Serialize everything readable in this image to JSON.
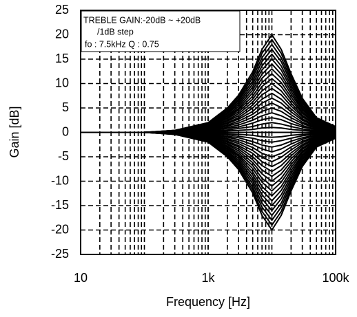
{
  "chart_data": {
    "type": "line",
    "xlabel": "Frequency [Hz]",
    "ylabel": "Gain [dB]",
    "annotations": [
      "TREBLE GAIN:-20dB  ~  +20dB",
      "/1dB step",
      "fo : 7.5kHz    Q : 0.75"
    ],
    "xscale": "log",
    "grid": true,
    "color": "#000000",
    "xlim": [
      10,
      100000
    ],
    "xticks": [
      10,
      {
        "value": 1000,
        "label": "1k"
      },
      {
        "value": 100000,
        "label": "100k"
      }
    ],
    "ylim": [
      -25,
      25
    ],
    "yticks": [
      -25,
      -20,
      -15,
      -10,
      -5,
      0,
      5,
      10,
      15,
      20,
      25
    ],
    "x": [
      10,
      100,
      300,
      1000,
      2000,
      3000,
      5000,
      7000,
      10000,
      14000,
      20000,
      30000,
      50000,
      100000
    ],
    "series": [
      {
        "values": [
          0,
          0,
          0.4,
          2,
          5,
          7.6,
          12.4,
          17,
          20,
          17,
          12,
          7,
          3,
          1.2
        ]
      },
      {
        "values": [
          0,
          0,
          0.4,
          1.9,
          4.8,
          7.2,
          11.8,
          16.2,
          19,
          16.2,
          11.4,
          6.7,
          2.9,
          1.1
        ]
      },
      {
        "values": [
          0,
          0,
          0.4,
          1.8,
          4.5,
          6.8,
          11.2,
          15.3,
          18,
          15.3,
          10.8,
          6.3,
          2.7,
          1.1
        ]
      },
      {
        "values": [
          0,
          0,
          0.3,
          1.7,
          4.3,
          6.5,
          10.5,
          14.5,
          17,
          14.5,
          10.2,
          6,
          2.6,
          1
        ]
      },
      {
        "values": [
          0,
          0,
          0.3,
          1.6,
          4,
          6.1,
          9.9,
          13.6,
          16,
          13.6,
          9.6,
          5.6,
          2.4,
          1
        ]
      },
      {
        "values": [
          0,
          0,
          0.3,
          1.5,
          3.8,
          5.7,
          9.3,
          12.8,
          15,
          12.8,
          9,
          5.3,
          2.3,
          0.9
        ]
      },
      {
        "values": [
          0,
          0,
          0.3,
          1.4,
          3.5,
          5.3,
          8.7,
          11.9,
          14,
          11.9,
          8.4,
          4.9,
          2.1,
          0.8
        ]
      },
      {
        "values": [
          0,
          0,
          0.3,
          1.3,
          3.3,
          4.9,
          8.1,
          11.1,
          13,
          11.1,
          7.8,
          4.6,
          2,
          0.8
        ]
      },
      {
        "values": [
          0,
          0,
          0.2,
          1.2,
          3,
          4.6,
          7.4,
          10.2,
          12,
          10.2,
          7.2,
          4.2,
          1.8,
          0.7
        ]
      },
      {
        "values": [
          0,
          0,
          0.2,
          1.1,
          2.8,
          4.2,
          6.8,
          9.4,
          11,
          9.4,
          6.6,
          3.9,
          1.7,
          0.7
        ]
      },
      {
        "values": [
          0,
          0,
          0.2,
          1,
          2.5,
          3.8,
          6.2,
          8.5,
          10,
          8.5,
          6,
          3.5,
          1.5,
          0.6
        ]
      },
      {
        "values": [
          0,
          0,
          0.2,
          0.9,
          2.3,
          3.4,
          5.6,
          7.7,
          9,
          7.7,
          5.4,
          3.2,
          1.4,
          0.5
        ]
      },
      {
        "values": [
          0,
          0,
          0.2,
          0.8,
          2,
          3,
          5,
          6.8,
          8,
          6.8,
          4.8,
          2.8,
          1.2,
          0.5
        ]
      },
      {
        "values": [
          0,
          0,
          0.1,
          0.7,
          1.8,
          2.7,
          4.3,
          6,
          7,
          6,
          4.2,
          2.5,
          1.1,
          0.4
        ]
      },
      {
        "values": [
          0,
          0,
          0.1,
          0.6,
          1.5,
          2.3,
          3.7,
          5.1,
          6,
          5.1,
          3.6,
          2.1,
          0.9,
          0.4
        ]
      },
      {
        "values": [
          0,
          0,
          0.1,
          0.5,
          1.3,
          1.9,
          3.1,
          4.3,
          5,
          4.3,
          3,
          1.8,
          0.8,
          0.3
        ]
      },
      {
        "values": [
          0,
          0,
          0.1,
          0.4,
          1,
          1.5,
          2.5,
          3.4,
          4,
          3.4,
          2.4,
          1.4,
          0.6,
          0.2
        ]
      },
      {
        "values": [
          0,
          0,
          0.1,
          0.3,
          0.8,
          1.1,
          1.9,
          2.6,
          3,
          2.6,
          1.8,
          1.1,
          0.5,
          0.2
        ]
      },
      {
        "values": [
          0,
          0,
          0,
          0.2,
          0.5,
          0.8,
          1.2,
          1.7,
          2,
          1.7,
          1.2,
          0.7,
          0.3,
          0.1
        ]
      },
      {
        "values": [
          0,
          0,
          0,
          0.1,
          0.3,
          0.4,
          0.6,
          0.9,
          1,
          0.9,
          0.6,
          0.4,
          0.2,
          0.1
        ]
      },
      {
        "values": [
          0,
          0,
          0,
          0,
          0,
          0,
          0,
          0,
          0,
          0,
          0,
          0,
          0,
          0
        ]
      },
      {
        "values": [
          0,
          0,
          0,
          -0.1,
          -0.3,
          -0.4,
          -0.6,
          -0.9,
          -1,
          -0.9,
          -0.6,
          -0.4,
          -0.2,
          -0.1
        ]
      },
      {
        "values": [
          0,
          0,
          0,
          -0.2,
          -0.5,
          -0.8,
          -1.2,
          -1.7,
          -2,
          -1.7,
          -1.2,
          -0.7,
          -0.3,
          -0.1
        ]
      },
      {
        "values": [
          0,
          0,
          -0.1,
          -0.3,
          -0.8,
          -1.1,
          -1.9,
          -2.6,
          -3,
          -2.6,
          -1.8,
          -1.1,
          -0.5,
          -0.2
        ]
      },
      {
        "values": [
          0,
          0,
          -0.1,
          -0.4,
          -1,
          -1.5,
          -2.5,
          -3.4,
          -4,
          -3.4,
          -2.4,
          -1.4,
          -0.6,
          -0.2
        ]
      },
      {
        "values": [
          0,
          0,
          -0.1,
          -0.5,
          -1.3,
          -1.9,
          -3.1,
          -4.3,
          -5,
          -4.3,
          -3,
          -1.8,
          -0.8,
          -0.3
        ]
      },
      {
        "values": [
          0,
          0,
          -0.1,
          -0.6,
          -1.5,
          -2.3,
          -3.7,
          -5.1,
          -6,
          -5.1,
          -3.6,
          -2.1,
          -0.9,
          -0.4
        ]
      },
      {
        "values": [
          0,
          0,
          -0.1,
          -0.7,
          -1.8,
          -2.7,
          -4.3,
          -6,
          -7,
          -6,
          -4.2,
          -2.5,
          -1.1,
          -0.4
        ]
      },
      {
        "values": [
          0,
          0,
          -0.2,
          -0.8,
          -2,
          -3,
          -5,
          -6.8,
          -8,
          -6.8,
          -4.8,
          -2.8,
          -1.2,
          -0.5
        ]
      },
      {
        "values": [
          0,
          0,
          -0.2,
          -0.9,
          -2.3,
          -3.4,
          -5.6,
          -7.7,
          -9,
          -7.7,
          -5.4,
          -3.2,
          -1.4,
          -0.5
        ]
      },
      {
        "values": [
          0,
          0,
          -0.2,
          -1,
          -2.5,
          -3.8,
          -6.2,
          -8.5,
          -10,
          -8.5,
          -6,
          -3.5,
          -1.5,
          -0.6
        ]
      },
      {
        "values": [
          0,
          0,
          -0.2,
          -1.1,
          -2.8,
          -4.2,
          -6.8,
          -9.4,
          -11,
          -9.4,
          -6.6,
          -3.9,
          -1.7,
          -0.7
        ]
      },
      {
        "values": [
          0,
          0,
          -0.2,
          -1.2,
          -3,
          -4.6,
          -7.4,
          -10.2,
          -12,
          -10.2,
          -7.2,
          -4.2,
          -1.8,
          -0.7
        ]
      },
      {
        "values": [
          0,
          0,
          -0.3,
          -1.3,
          -3.3,
          -4.9,
          -8.1,
          -11.1,
          -13,
          -11.1,
          -7.8,
          -4.6,
          -2,
          -0.8
        ]
      },
      {
        "values": [
          0,
          0,
          -0.3,
          -1.4,
          -3.5,
          -5.3,
          -8.7,
          -11.9,
          -14,
          -11.9,
          -8.4,
          -4.9,
          -2.1,
          -0.8
        ]
      },
      {
        "values": [
          0,
          0,
          -0.3,
          -1.5,
          -3.8,
          -5.7,
          -9.3,
          -12.8,
          -15,
          -12.8,
          -9,
          -5.3,
          -2.3,
          -0.9
        ]
      },
      {
        "values": [
          0,
          0,
          -0.3,
          -1.6,
          -4,
          -6.1,
          -9.9,
          -13.6,
          -16,
          -13.6,
          -9.6,
          -5.6,
          -2.4,
          -1
        ]
      },
      {
        "values": [
          0,
          0,
          -0.3,
          -1.7,
          -4.3,
          -6.5,
          -10.5,
          -14.5,
          -17,
          -14.5,
          -10.2,
          -6,
          -2.6,
          -1
        ]
      },
      {
        "values": [
          0,
          0,
          -0.4,
          -1.8,
          -4.5,
          -6.8,
          -11.2,
          -15.3,
          -18,
          -15.3,
          -10.8,
          -6.3,
          -2.7,
          -1.1
        ]
      },
      {
        "values": [
          0,
          0,
          -0.4,
          -1.9,
          -4.8,
          -7.2,
          -11.8,
          -16.2,
          -19,
          -16.2,
          -11.4,
          -6.7,
          -2.9,
          -1.1
        ]
      },
      {
        "values": [
          0,
          0,
          -0.4,
          -2,
          -5,
          -7.6,
          -12.4,
          -17,
          -20,
          -17,
          -12,
          -7,
          -3,
          -1.2
        ]
      }
    ]
  }
}
